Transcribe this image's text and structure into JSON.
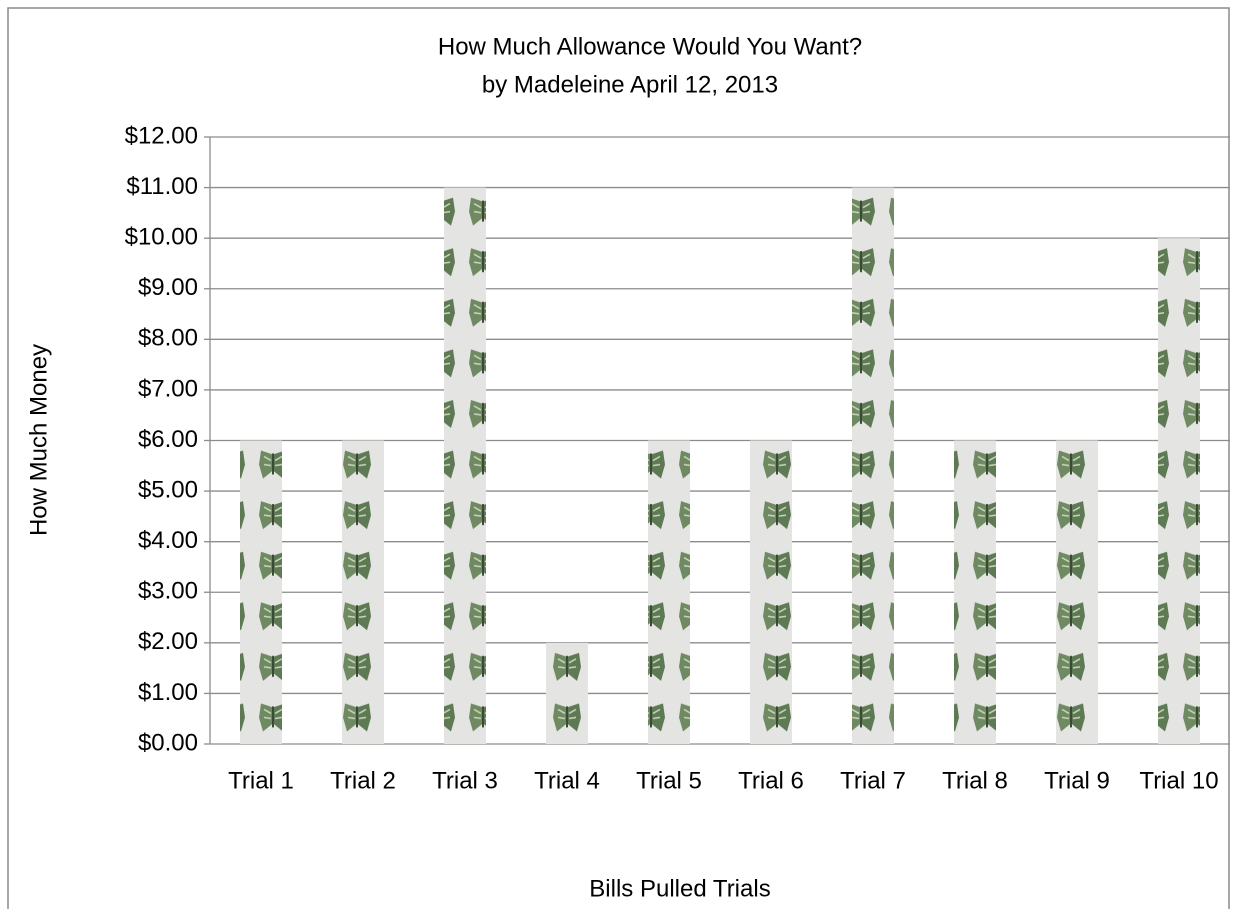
{
  "chart_data": {
    "type": "bar",
    "title": "How Much Allowance Would You Want?",
    "subtitle": "by Madeleine  April 12, 2013",
    "y_label": "How Much Money",
    "x_label": "Bills Pulled Trials",
    "categories": [
      "Trial 1",
      "Trial 2",
      "Trial 3",
      "Trial 4",
      "Trial 5",
      "Trial 6",
      "Trial 7",
      "Trial 8",
      "Trial 9",
      "Trial 10"
    ],
    "values": [
      6,
      6,
      11,
      2,
      6,
      6,
      11,
      6,
      6,
      10
    ],
    "color": "#e4e4e2",
    "ylim": [
      0,
      12
    ],
    "yticks": [
      {
        "value": 0,
        "label": "$0.00"
      },
      {
        "value": 1,
        "label": "$1.00"
      },
      {
        "value": 2,
        "label": "$2.00"
      },
      {
        "value": 3,
        "label": "$3.00"
      },
      {
        "value": 4,
        "label": "$4.00"
      },
      {
        "value": 5,
        "label": "$5.00"
      },
      {
        "value": 6,
        "label": "$6.00"
      },
      {
        "value": 7,
        "label": "$7.00"
      },
      {
        "value": 8,
        "label": "$8.00"
      },
      {
        "value": 9,
        "label": "$9.00"
      },
      {
        "value": 10,
        "label": "$10.00"
      },
      {
        "value": 11,
        "label": "$11.00"
      },
      {
        "value": 12,
        "label": "$12.00"
      }
    ],
    "grid": true
  }
}
